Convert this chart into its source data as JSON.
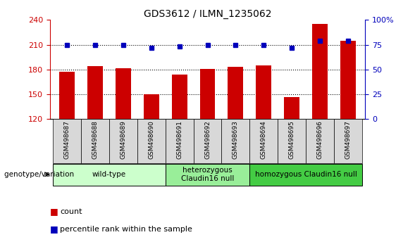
{
  "title": "GDS3612 / ILMN_1235062",
  "samples": [
    "GSM498687",
    "GSM498688",
    "GSM498689",
    "GSM498690",
    "GSM498691",
    "GSM498692",
    "GSM498693",
    "GSM498694",
    "GSM498695",
    "GSM498696",
    "GSM498697"
  ],
  "count_values": [
    177,
    184,
    182,
    150,
    174,
    181,
    183,
    185,
    147,
    235,
    215
  ],
  "percentile_values": [
    75,
    75,
    75,
    72,
    73,
    75,
    75,
    75,
    72,
    79,
    79
  ],
  "ylim_left": [
    120,
    240
  ],
  "ylim_right": [
    0,
    100
  ],
  "yticks_left": [
    120,
    150,
    180,
    210,
    240
  ],
  "yticks_right": [
    0,
    25,
    50,
    75,
    100
  ],
  "ytick_labels_right": [
    "0",
    "25",
    "50",
    "75",
    "100%"
  ],
  "groups": [
    {
      "label": "wild-type",
      "start": 0,
      "end": 3,
      "color": "#ccffcc"
    },
    {
      "label": "heterozygous\nClaudin16 null",
      "start": 4,
      "end": 6,
      "color": "#99ee99"
    },
    {
      "label": "homozygous Claudin16 null",
      "start": 7,
      "end": 10,
      "color": "#44cc44"
    }
  ],
  "bar_color": "#cc0000",
  "dot_color": "#0000bb",
  "bg_color": "#ffffff",
  "plot_bg_color": "#ffffff",
  "left_axis_color": "#cc0000",
  "right_axis_color": "#0000bb",
  "genotype_label": "genotype/variation",
  "legend_count_label": "count",
  "legend_pct_label": "percentile rank within the sample"
}
